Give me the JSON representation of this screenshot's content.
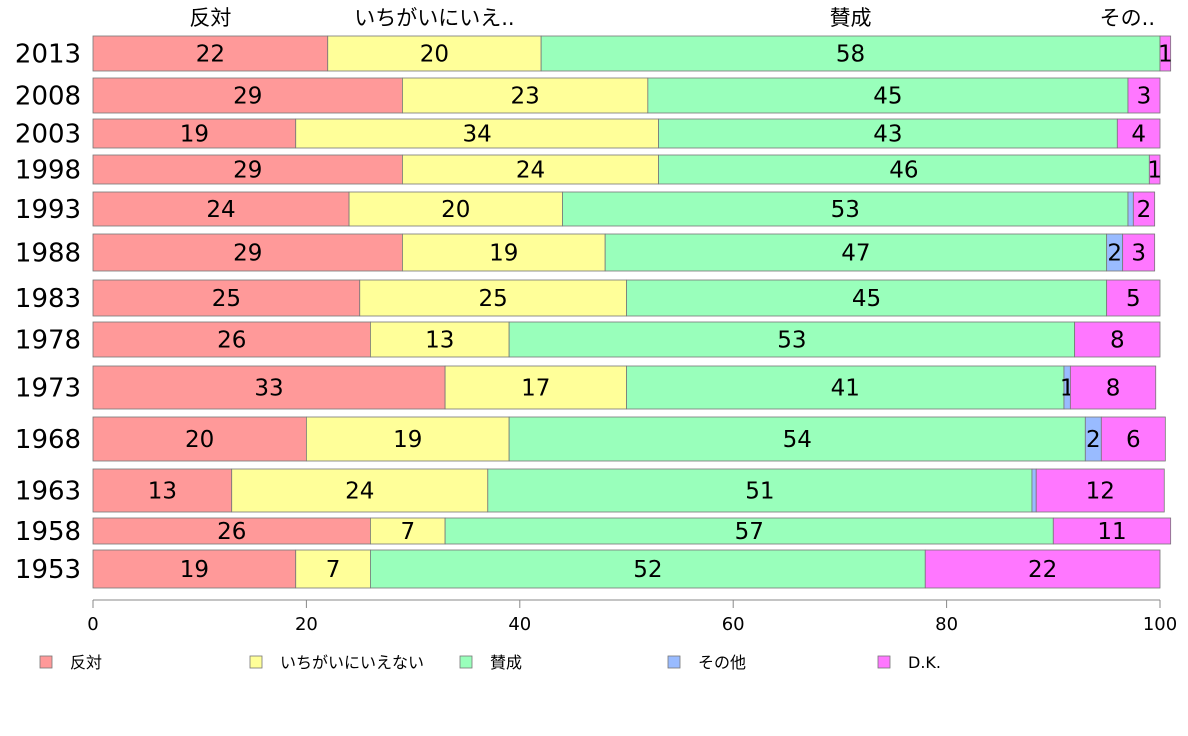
{
  "chart_data": {
    "type": "bar",
    "orientation": "horizontal",
    "stacked": true,
    "legend_position": "bottom",
    "top_labels": [
      "反対",
      "いちがいにいえ..",
      "賛成",
      "その.."
    ],
    "categories": [
      "2013",
      "2008",
      "2003",
      "1998",
      "1993",
      "1988",
      "1983",
      "1978",
      "1973",
      "1968",
      "1963",
      "1958",
      "1953"
    ],
    "series": [
      {
        "name": "反対",
        "color": "#ff9999",
        "values": [
          22,
          29,
          19,
          29,
          24,
          29,
          25,
          26,
          33,
          20,
          13,
          26,
          19
        ]
      },
      {
        "name": "いちがいにいえない",
        "color": "#ffff99",
        "values": [
          20,
          23,
          34,
          24,
          20,
          19,
          25,
          13,
          17,
          19,
          24,
          7,
          7
        ]
      },
      {
        "name": "賛成",
        "color": "#99ffbb",
        "values": [
          58,
          45,
          43,
          46,
          53,
          47,
          45,
          53,
          41,
          54,
          51,
          57,
          52
        ]
      },
      {
        "name": "その他",
        "color": "#99bbff",
        "values": [
          0,
          0,
          0,
          0,
          0.5,
          1.5,
          0,
          0,
          0.6,
          1.5,
          0.4,
          0,
          0
        ]
      },
      {
        "name": "D.K.",
        "color": "#ff77ff",
        "values": [
          1,
          3,
          4,
          1,
          2,
          3,
          5,
          8,
          8,
          6,
          12,
          11,
          22
        ]
      }
    ],
    "data_labels": [
      [
        "22",
        "20",
        "58",
        "",
        "1"
      ],
      [
        "29",
        "23",
        "45",
        "",
        "3"
      ],
      [
        "19",
        "34",
        "43",
        "",
        "4"
      ],
      [
        "29",
        "24",
        "46",
        "",
        "1"
      ],
      [
        "24",
        "20",
        "53",
        "",
        "2"
      ],
      [
        "29",
        "19",
        "47",
        "2",
        "3"
      ],
      [
        "25",
        "25",
        "45",
        "",
        "5"
      ],
      [
        "26",
        "13",
        "53",
        "",
        "8"
      ],
      [
        "33",
        "17",
        "41",
        "1",
        "8"
      ],
      [
        "20",
        "19",
        "54",
        "2",
        "6"
      ],
      [
        "13",
        "24",
        "51",
        "",
        "12"
      ],
      [
        "26",
        "7",
        "57",
        "",
        "11"
      ],
      [
        "19",
        "7",
        "52",
        "",
        "22"
      ]
    ],
    "x_ticks": [
      0,
      20,
      40,
      60,
      80,
      100
    ],
    "xlim": [
      0,
      100
    ],
    "title": "",
    "xlabel": "",
    "ylabel": "",
    "grid": false
  }
}
